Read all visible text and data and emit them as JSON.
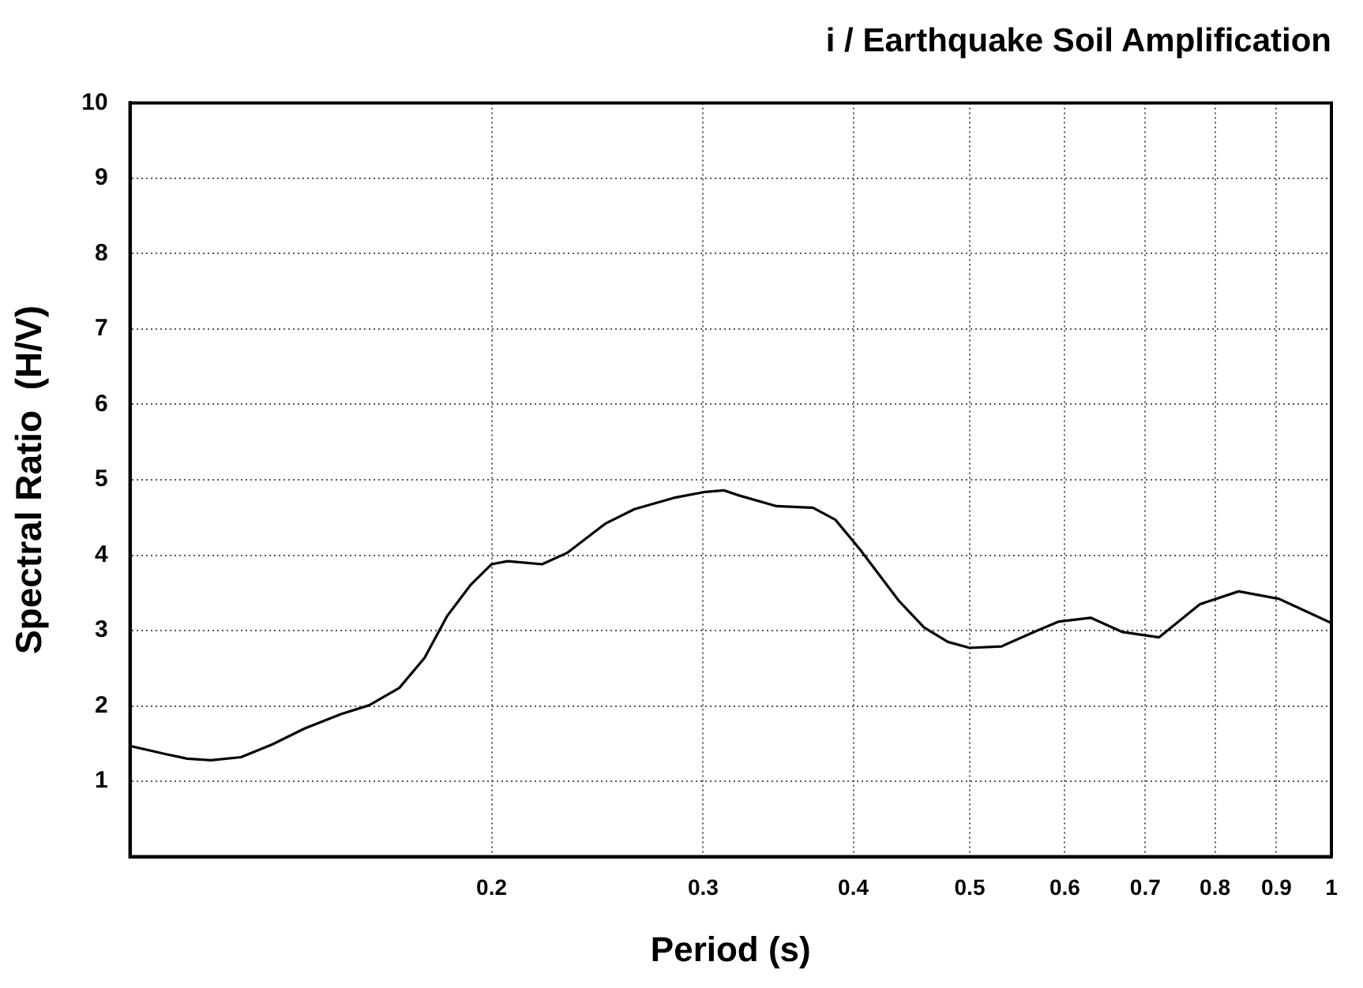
{
  "chart_data": {
    "type": "line",
    "title": "i / Earthquake Soil Amplification",
    "xlabel": "Period (s)",
    "ylabel": "Spectral Ratio  (H/V)",
    "log": "x",
    "xlim": [
      0.1,
      1
    ],
    "xticks": [
      {
        "value": 0.1,
        "label": null
      },
      0.2,
      0.3,
      0.4,
      0.5,
      0.6,
      0.7,
      0.8,
      0.9,
      1
    ],
    "ylim": [
      0,
      10
    ],
    "yticks": [
      {
        "value": 0,
        "label": null
      },
      1,
      2,
      3,
      4,
      5,
      6,
      7,
      8,
      9,
      10
    ],
    "grid": true,
    "legend": false,
    "marker": "none",
    "line_style": "solid",
    "series": [
      {
        "color": "#000000",
        "x": [
          0.1,
          0.1072,
          0.1116,
          0.1168,
          0.1237,
          0.1314,
          0.1397,
          0.1498,
          0.1582,
          0.1676,
          0.1759,
          0.1836,
          0.1922,
          0.2,
          0.2062,
          0.2203,
          0.2311,
          0.2488,
          0.2629,
          0.2835,
          0.3013,
          0.3121,
          0.3201,
          0.3454,
          0.3702,
          0.3865,
          0.4054,
          0.4362,
          0.4581,
          0.4794,
          0.5,
          0.5315,
          0.5652,
          0.5933,
          0.6304,
          0.6701,
          0.7185,
          0.7775,
          0.8372,
          0.9046,
          1.0
        ],
        "values": [
          1.47,
          1.36,
          1.3,
          1.28,
          1.32,
          1.49,
          1.7,
          1.89,
          2.01,
          2.24,
          2.64,
          3.19,
          3.61,
          3.88,
          3.92,
          3.88,
          4.03,
          4.42,
          4.61,
          4.76,
          4.84,
          4.86,
          4.8,
          4.65,
          4.63,
          4.47,
          4.07,
          3.4,
          3.04,
          2.85,
          2.77,
          2.79,
          2.98,
          3.12,
          3.17,
          2.98,
          2.91,
          3.35,
          3.52,
          3.42,
          3.1
        ]
      }
    ]
  }
}
